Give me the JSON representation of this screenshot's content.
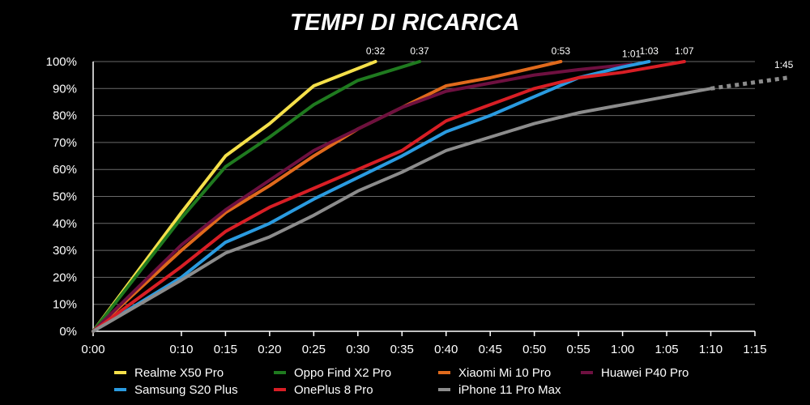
{
  "chart_data": {
    "type": "line",
    "title": "TEMPI DI RICARICA",
    "xlabel": "",
    "ylabel": "",
    "x_unit": "minutes",
    "x_ticks": [
      "0:00",
      "0:10",
      "0:15",
      "0:20",
      "0:25",
      "0:30",
      "0:35",
      "0:40",
      "0:45",
      "0:50",
      "0:55",
      "1:00",
      "1:05",
      "1:10",
      "1:15"
    ],
    "y_ticks": [
      "0%",
      "10%",
      "20%",
      "30%",
      "40%",
      "50%",
      "60%",
      "70%",
      "80%",
      "90%",
      "100%"
    ],
    "xlim": [
      0,
      75
    ],
    "ylim": [
      0,
      100
    ],
    "grid": "horizontal",
    "legend_position": "bottom",
    "series": [
      {
        "name": "Realme X50 Pro",
        "color": "#f5e04a",
        "end_label": "0:32",
        "x": [
          0,
          10,
          15,
          20,
          25,
          32
        ],
        "y": [
          0,
          44,
          65,
          77,
          91,
          100
        ]
      },
      {
        "name": "Oppo Find X2 Pro",
        "color": "#1f7a1f",
        "end_label": "0:37",
        "x": [
          0,
          10,
          15,
          20,
          25,
          30,
          35,
          37
        ],
        "y": [
          0,
          42,
          61,
          72,
          84,
          93,
          98,
          100
        ]
      },
      {
        "name": "Xiaomi Mi 10 Pro",
        "color": "#e06a1c",
        "end_label": "0:53",
        "x": [
          0,
          10,
          15,
          20,
          25,
          30,
          35,
          40,
          45,
          53
        ],
        "y": [
          0,
          30,
          44,
          54,
          65,
          75,
          83,
          91,
          94,
          100
        ]
      },
      {
        "name": "Huawei P40 Pro",
        "color": "#6e1040",
        "end_label": "1:01",
        "x": [
          0,
          10,
          15,
          20,
          25,
          30,
          35,
          40,
          45,
          50,
          55,
          61
        ],
        "y": [
          0,
          32,
          45,
          56,
          67,
          75,
          83,
          89,
          92,
          95,
          97,
          99
        ]
      },
      {
        "name": "Samsung S20 Plus",
        "color": "#2a9be0",
        "end_label": "1:03",
        "x": [
          0,
          10,
          15,
          20,
          25,
          30,
          35,
          40,
          45,
          50,
          55,
          60,
          63
        ],
        "y": [
          0,
          20,
          33,
          40,
          49,
          57,
          65,
          74,
          80,
          87,
          94,
          98,
          100
        ]
      },
      {
        "name": "OnePlus 8 Pro",
        "color": "#d81e25",
        "end_label": "1:07",
        "x": [
          0,
          10,
          15,
          20,
          25,
          30,
          35,
          40,
          45,
          50,
          55,
          60,
          67
        ],
        "y": [
          0,
          24,
          37,
          46,
          53,
          60,
          67,
          78,
          84,
          90,
          94,
          96,
          100
        ]
      },
      {
        "name": "iPhone 11 Pro Max",
        "color": "#8c8c8c",
        "end_label": "1:45",
        "x": [
          0,
          10,
          15,
          20,
          25,
          30,
          35,
          40,
          45,
          50,
          55,
          60,
          65,
          70
        ],
        "y": [
          0,
          19,
          29,
          35,
          43,
          52,
          59,
          67,
          72,
          77,
          81,
          84,
          87,
          90
        ],
        "dotted_extension_to_y": 94
      }
    ]
  }
}
